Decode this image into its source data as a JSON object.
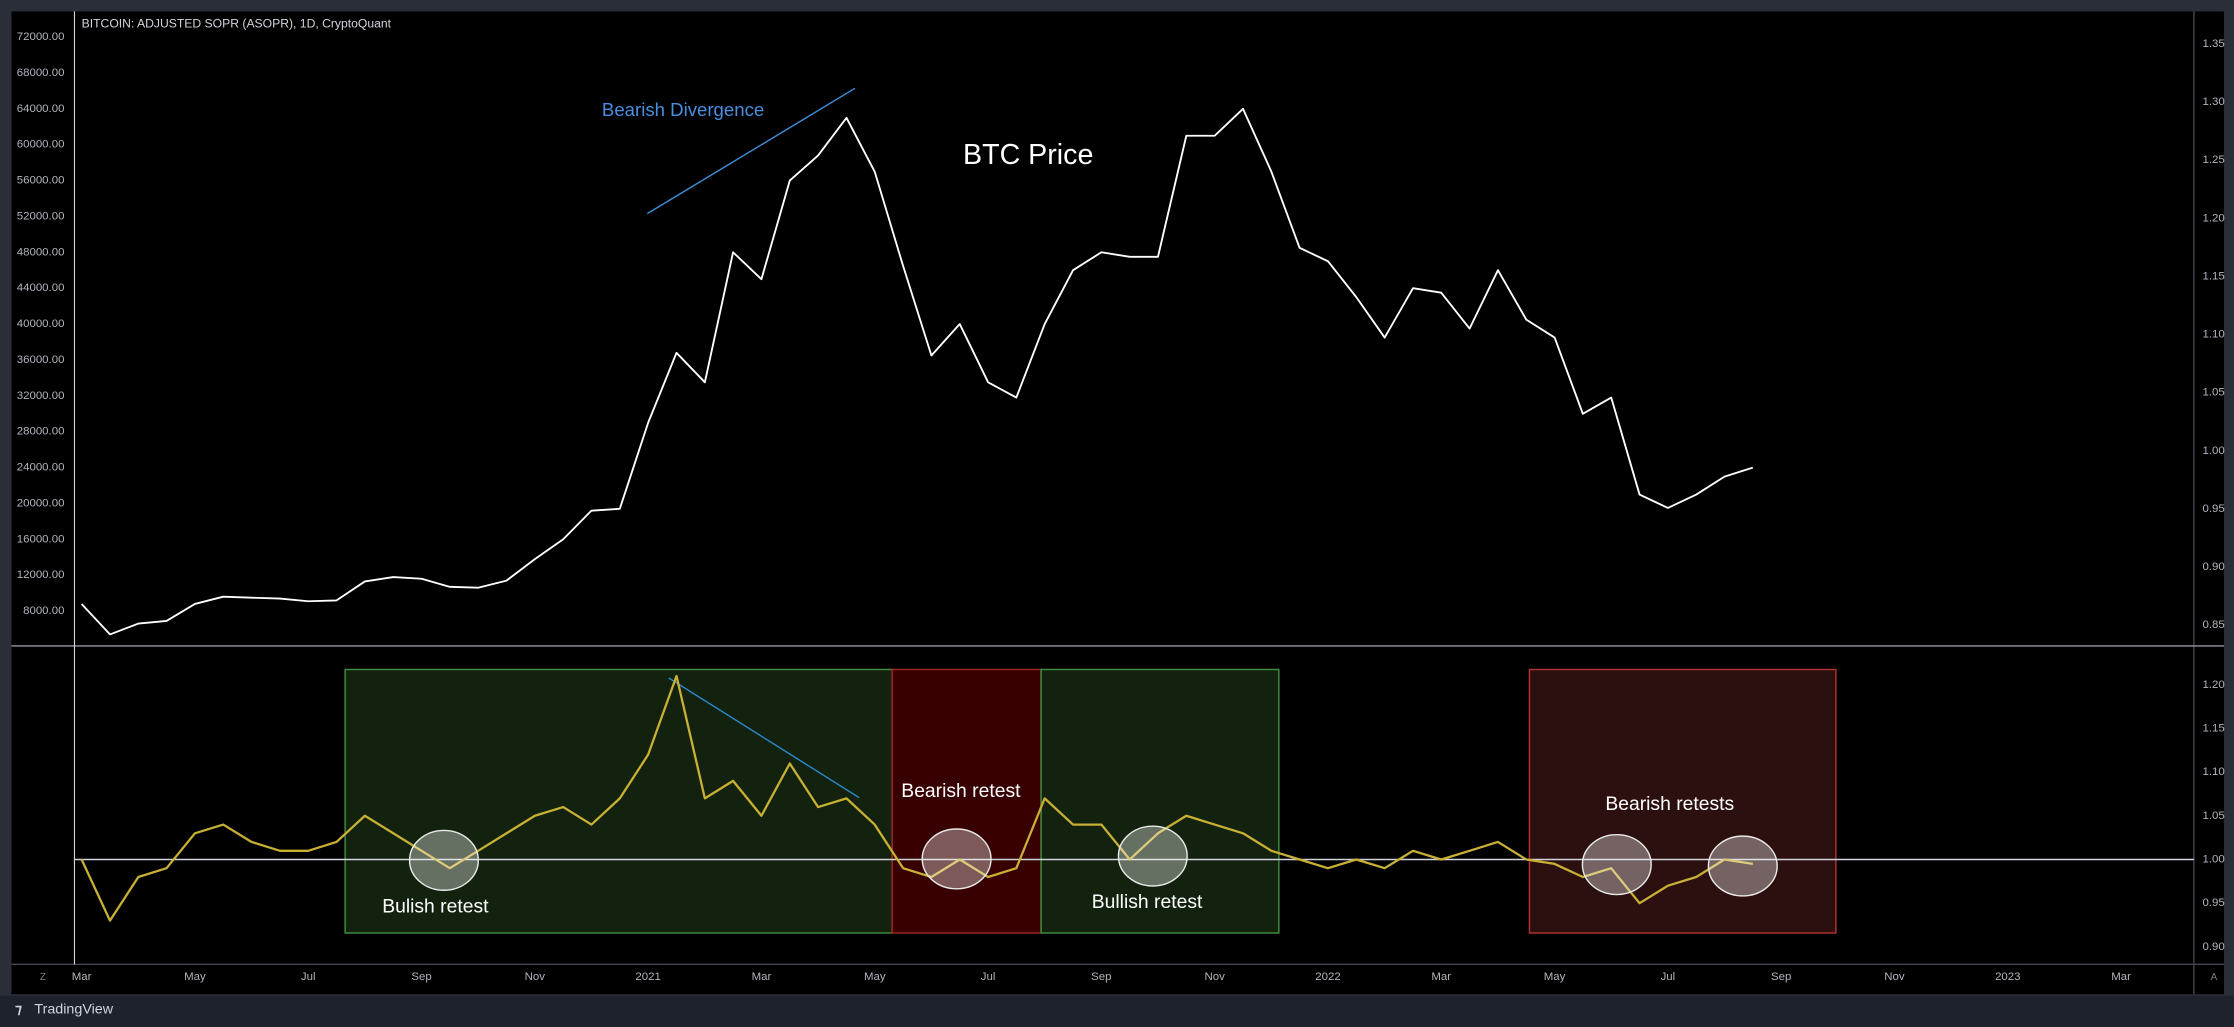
{
  "chart_data": [
    {
      "type": "line",
      "title": "BITCOIN: ADJUSTED SOPR (ASOPR), 1D, CryptoQuant",
      "annotations": [
        "Bearish Divergence",
        "BTC Price"
      ],
      "ylim": [
        4350,
        74860
      ],
      "yticks": [
        {
          "value": 8000,
          "label": "8000.00"
        },
        {
          "value": 12000,
          "label": "12000.00"
        },
        {
          "value": 16000,
          "label": "16000.00"
        },
        {
          "value": 20000,
          "label": "20000.00"
        },
        {
          "value": 24000,
          "label": "24000.00"
        },
        {
          "value": 28000,
          "label": "28000.00"
        },
        {
          "value": 32000,
          "label": "32000.00"
        },
        {
          "value": 36000,
          "label": "36000.00"
        },
        {
          "value": 40000,
          "label": "40000.00"
        },
        {
          "value": 44000,
          "label": "44000.00"
        },
        {
          "value": 48000,
          "label": "48000.00"
        },
        {
          "value": 52000,
          "label": "52000.00"
        },
        {
          "value": 56000,
          "label": "56000.00"
        },
        {
          "value": 60000,
          "label": "60000.00"
        },
        {
          "value": 64000,
          "label": "64000.00"
        },
        {
          "value": 68000,
          "label": "68000.00"
        },
        {
          "value": 72000,
          "label": "72000.00"
        }
      ],
      "y2lim": [
        0.834,
        1.378
      ],
      "y2ticks": [
        0.85,
        {
          "value": 0.9,
          "label": "0.90"
        },
        0.95,
        {
          "value": 1,
          "label": "1.00"
        },
        1.05,
        {
          "value": 1.1,
          "label": "1.10"
        },
        1.15,
        {
          "value": 1.2,
          "label": "1.20"
        },
        1.25,
        {
          "value": 1.3,
          "label": "1.30"
        },
        1.35
      ],
      "grid": false,
      "series": [
        {
          "color": "#ffffff",
          "values": [
            8800,
            5400,
            6600,
            6900,
            8800,
            9600,
            9500,
            9400,
            9100,
            9200,
            11300,
            11800,
            11600,
            10700,
            10600,
            11400,
            13800,
            16000,
            19200,
            19400,
            29000,
            36800,
            33500,
            48000,
            45000,
            56000,
            58800,
            63000,
            57000,
            46500,
            36500,
            40000,
            33500,
            31800,
            40000,
            46000,
            48000,
            47500,
            47500,
            61000,
            61000,
            64000,
            57000,
            48500,
            47000,
            43000,
            38500,
            44000,
            43500,
            39500,
            46000,
            40500,
            38500,
            30000,
            31800,
            21000,
            19500,
            21000,
            23000,
            24000,
            null,
            null,
            null,
            null,
            null,
            null,
            null,
            null,
            null,
            null,
            null,
            null,
            null
          ]
        }
      ]
    },
    {
      "type": "line",
      "annotations": [
        "Bulish retest",
        "Bearish retest",
        "Bullish retest",
        "Bearish retests"
      ],
      "categories": [
        "Mar",
        null,
        null,
        null,
        "May",
        null,
        null,
        null,
        "Jul",
        null,
        null,
        null,
        "Sep",
        null,
        null,
        null,
        "Nov",
        null,
        null,
        null,
        "2021",
        null,
        null,
        null,
        "Mar",
        null,
        null,
        null,
        "May",
        null,
        null,
        null,
        "Jul",
        null,
        null,
        null,
        "Sep",
        null,
        null,
        null,
        "Nov",
        null,
        null,
        null,
        "2022",
        null,
        null,
        null,
        "Mar",
        null,
        null,
        null,
        "May",
        null,
        null,
        null,
        "Jul",
        null,
        null,
        null,
        "Sep",
        null,
        null,
        null,
        "Nov",
        null,
        null,
        null,
        "2023",
        null,
        null,
        null,
        "Mar"
      ],
      "ylim": [
        0.88,
        1.242
      ],
      "yticks": [
        {
          "value": 0.9,
          "label": "0.90"
        },
        0.95,
        {
          "value": 1,
          "label": "1.00"
        },
        1.05,
        {
          "value": 1.1,
          "label": "1.10"
        },
        1.15,
        {
          "value": 1.2,
          "label": "1.20"
        }
      ],
      "reference_line": 1,
      "grid": false,
      "series": [
        {
          "color": "#c8b034",
          "values": [
            1.0,
            0.93,
            0.98,
            0.99,
            1.03,
            1.04,
            1.02,
            1.01,
            1.01,
            1.02,
            1.05,
            1.03,
            1.01,
            0.99,
            1.01,
            1.03,
            1.05,
            1.06,
            1.04,
            1.07,
            1.12,
            1.21,
            1.07,
            1.09,
            1.05,
            1.11,
            1.06,
            1.07,
            1.04,
            0.99,
            0.98,
            1.0,
            0.98,
            0.99,
            1.07,
            1.04,
            1.04,
            1.0,
            1.03,
            1.05,
            1.04,
            1.03,
            1.01,
            1.0,
            0.99,
            1.0,
            0.99,
            1.01,
            1.0,
            1.01,
            1.02,
            1.0,
            0.995,
            0.98,
            0.99,
            0.95,
            0.97,
            0.98,
            1.0,
            0.995,
            null,
            null,
            null,
            null,
            null,
            null,
            null,
            null,
            null,
            null,
            null,
            null,
            null
          ]
        }
      ]
    }
  ],
  "ui": {
    "brand": "TradingView",
    "buttons": [
      "Z",
      "A"
    ]
  }
}
